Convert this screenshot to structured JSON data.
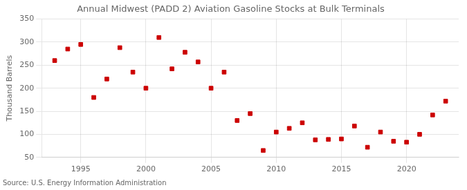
{
  "chart_data": {
    "type": "scatter",
    "title": "Annual Midwest (PADD 2) Aviation Gasoline Stocks at Bulk Terminals",
    "ylabel": "Thousand Barrels",
    "annotations": [
      "Source: U.S. Energy Information Administration"
    ],
    "x": [
      1993,
      1994,
      1995,
      1996,
      1997,
      1998,
      1999,
      2000,
      2001,
      2002,
      2003,
      2004,
      2005,
      2006,
      2007,
      2008,
      2009,
      2010,
      2011,
      2012,
      2013,
      2014,
      2015,
      2016,
      2017,
      2018,
      2019,
      2020,
      2021,
      2022,
      2023
    ],
    "values": [
      260,
      285,
      295,
      180,
      220,
      288,
      235,
      200,
      310,
      242,
      278,
      257,
      200,
      235,
      130,
      145,
      65,
      105,
      113,
      125,
      88,
      89,
      90,
      118,
      72,
      105,
      85,
      83,
      100,
      142,
      172
    ],
    "color": "#cc0000",
    "marker": "square",
    "xlim": [
      1992,
      2024
    ],
    "xticks": [
      1995,
      2000,
      2005,
      2010,
      2015,
      2020
    ],
    "ylim": [
      50,
      350
    ],
    "yticks": [
      50,
      100,
      150,
      200,
      250,
      300,
      350
    ],
    "grid": true
  }
}
